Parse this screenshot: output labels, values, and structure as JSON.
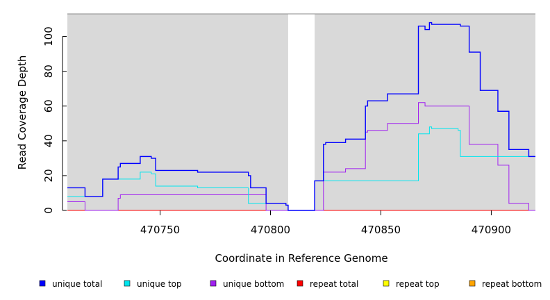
{
  "chart_data": {
    "type": "line",
    "step": true,
    "title": "",
    "xlabel": "Coordinate in Reference Genome",
    "ylabel": "Read Coverage Depth",
    "xlim": [
      470708,
      470920
    ],
    "ylim": [
      0,
      113
    ],
    "x_ticks": [
      470750,
      470800,
      470850,
      470900
    ],
    "y_ticks": [
      0,
      20,
      40,
      60,
      80,
      100
    ],
    "background_color": "#d9d9d9",
    "gap_region": [
      470808,
      470820
    ],
    "legend_position": "bottom",
    "series": [
      {
        "name": "unique total",
        "color": "#0000ff",
        "x": [
          470708,
          470716,
          470724,
          470731,
          470732,
          470741,
          470746,
          470748,
          470767,
          470790,
          470791,
          470798,
          470807,
          470808,
          470812,
          470820,
          470824,
          470825,
          470834,
          470843,
          470844,
          470853,
          470861,
          470867,
          470870,
          470872,
          470873,
          470885,
          470886,
          470890,
          470895,
          470903,
          470908,
          470917,
          470920
        ],
        "y": [
          13,
          8,
          18,
          25,
          27,
          31,
          30,
          23,
          22,
          20,
          13,
          4,
          3,
          0,
          0,
          17,
          38,
          39,
          41,
          60,
          63,
          67,
          67,
          106,
          104,
          108,
          107,
          107,
          106,
          91,
          69,
          57,
          35,
          31,
          31
        ]
      },
      {
        "name": "unique top",
        "color": "#00e5ee",
        "x": [
          470708,
          470716,
          470724,
          470731,
          470741,
          470746,
          470748,
          470767,
          470790,
          470798,
          470807,
          470808,
          470812,
          470820,
          470824,
          470844,
          470861,
          470867,
          470870,
          470872,
          470873,
          470885,
          470886,
          470890,
          470903,
          470908,
          470920
        ],
        "y": [
          8,
          8,
          18,
          18,
          22,
          21,
          14,
          13,
          4,
          4,
          3,
          0,
          0,
          17,
          17,
          17,
          17,
          44,
          44,
          48,
          47,
          46,
          31,
          31,
          31,
          31,
          31
        ],
        "note_hidden": false
      },
      {
        "name": "unique bottom",
        "color": "#a020f0",
        "x": [
          470708,
          470716,
          470731,
          470732,
          470798,
          470808,
          470812,
          470824,
          470834,
          470843,
          470844,
          470853,
          470861,
          470867,
          470870,
          470890,
          470903,
          470908,
          470917,
          470920
        ],
        "y": [
          5,
          0,
          7,
          9,
          0,
          0,
          0,
          22,
          24,
          45,
          46,
          50,
          50,
          62,
          60,
          38,
          26,
          4,
          0,
          0
        ]
      },
      {
        "name": "repeat total",
        "color": "#ff0000",
        "x": [
          470708,
          470920
        ],
        "y": [
          0,
          0
        ]
      },
      {
        "name": "repeat top",
        "color": "#ffff00",
        "x": [
          470708,
          470920
        ],
        "y": [
          0,
          0
        ]
      },
      {
        "name": "repeat bottom",
        "color": "#ffa500",
        "x": [
          470708,
          470920
        ],
        "y": [
          0,
          0
        ]
      }
    ]
  }
}
